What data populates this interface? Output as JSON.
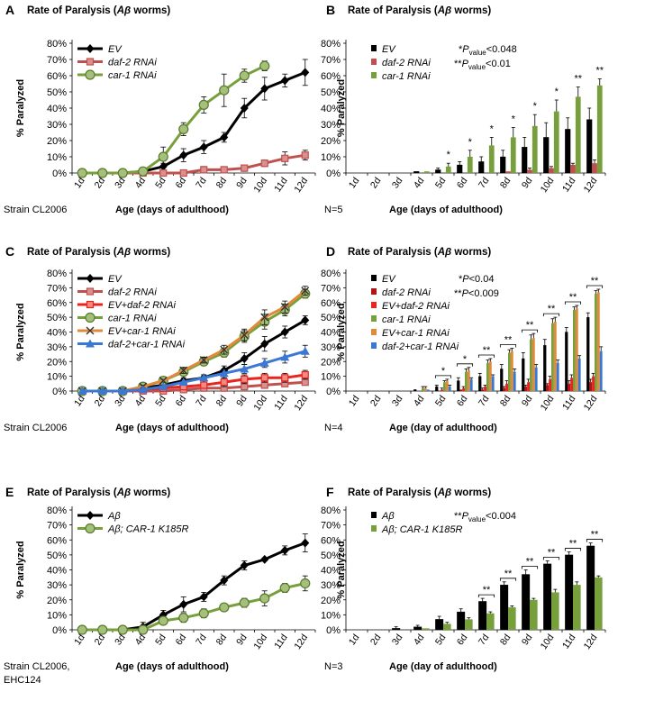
{
  "figure": {
    "days": [
      "1d",
      "2d",
      "3d",
      "4d",
      "5d",
      "6d",
      "7d",
      "8d",
      "9d",
      "10d",
      "11d",
      "12d"
    ],
    "yticks": [
      "0%",
      "10%",
      "20%",
      "30%",
      "40%",
      "50%",
      "60%",
      "70%",
      "80%"
    ]
  },
  "colors": {
    "black": "#000000",
    "daf2": "#c0504d",
    "car1": "#77a03c",
    "red": "#e8241c",
    "orange": "#e28a3c",
    "blue": "#3a78d4",
    "darkred": "#b01515"
  },
  "chart_data": [
    {
      "panel": "A",
      "type": "line",
      "title": "Rate of Paralysis (Aβ worms)",
      "xlabel": "Age (days of adulthood)",
      "ylabel": "% Paralyzed",
      "ylim": [
        0,
        80
      ],
      "note": "Strain CL2006",
      "legend_position": "top-left",
      "series": [
        {
          "name": "EV",
          "marker": "diamond",
          "color": "black",
          "values": [
            0,
            0,
            0,
            1,
            4,
            11,
            16,
            22,
            40,
            52,
            57,
            62
          ],
          "errors": [
            0,
            0,
            0,
            1,
            2,
            4,
            4,
            3,
            6,
            7,
            4,
            8
          ]
        },
        {
          "name": "daf-2 RNAi",
          "marker": "square",
          "color": "daf2",
          "values": [
            0,
            0,
            0,
            0,
            0,
            0,
            2,
            2,
            3,
            6,
            9,
            11
          ],
          "errors": [
            0,
            0,
            0,
            0,
            0,
            1,
            2,
            1,
            2,
            2,
            4,
            3
          ]
        },
        {
          "name": "car-1 RNAi",
          "marker": "circle",
          "color": "car1",
          "values": [
            0,
            0,
            0,
            1,
            10,
            27,
            42,
            51,
            60,
            66,
            null,
            null
          ],
          "errors": [
            0,
            0,
            0,
            1,
            6,
            4,
            5,
            10,
            4,
            3,
            0,
            0
          ]
        }
      ]
    },
    {
      "panel": "B",
      "type": "bar",
      "title": "Rate of Paralysis (Aβ worms)",
      "xlabel": "Age (days of adulthood)",
      "ylabel": "% Paralyzed",
      "ylim": [
        0,
        80
      ],
      "note": "N=5",
      "legend_position": "top-left",
      "annotations": [
        {
          "prefix": "*P",
          "sub": "value",
          "text": "<0.048"
        },
        {
          "prefix": "**P",
          "sub": "value",
          "text": "<0.01"
        }
      ],
      "series": [
        {
          "name": "EV",
          "color": "black",
          "values": [
            0,
            0,
            0,
            1,
            2,
            5,
            7,
            10,
            16,
            22,
            27,
            33
          ],
          "errors": [
            0,
            0,
            0,
            0,
            1,
            2,
            3,
            4,
            6,
            9,
            7,
            7
          ]
        },
        {
          "name": "daf-2 RNAi",
          "color": "daf2",
          "values": [
            0,
            0,
            0,
            0,
            0,
            0,
            0,
            1,
            2,
            3,
            5,
            6
          ],
          "errors": [
            0,
            0,
            0,
            0,
            0,
            0,
            0,
            0,
            1,
            1,
            1,
            2
          ]
        },
        {
          "name": "car-1 RNAi",
          "color": "car1",
          "values": [
            0,
            0,
            0,
            1,
            4,
            10,
            17,
            22,
            29,
            38,
            47,
            54
          ],
          "errors": [
            0,
            0,
            0,
            0,
            2,
            4,
            5,
            6,
            7,
            7,
            6,
            4
          ]
        }
      ],
      "significance": [
        "",
        "",
        "",
        "",
        "*",
        "*",
        "*",
        "*",
        "*",
        "*",
        "**",
        "**"
      ]
    },
    {
      "panel": "C",
      "type": "line",
      "title": "Rate of Paralysis (Aβ worms)",
      "xlabel": "Age (days of adulthood)",
      "ylabel": "% Paralyzed",
      "ylim": [
        0,
        80
      ],
      "note": "Strain CL2006",
      "legend_position": "top-left",
      "series": [
        {
          "name": "EV",
          "marker": "diamond",
          "color": "black",
          "values": [
            0,
            0,
            0,
            2,
            4,
            7,
            9,
            14,
            22,
            32,
            40,
            48
          ],
          "errors": [
            0,
            0,
            0,
            1,
            1,
            2,
            2,
            3,
            4,
            5,
            4,
            3
          ]
        },
        {
          "name": "daf-2 RNAi",
          "marker": "square",
          "color": "daf2",
          "values": [
            0,
            0,
            0,
            0,
            0,
            1,
            2,
            2,
            3,
            4,
            5,
            6
          ],
          "errors": [
            0,
            0,
            0,
            0,
            0,
            1,
            1,
            1,
            2,
            2,
            2,
            2
          ]
        },
        {
          "name": "EV+daf-2 RNAi",
          "marker": "square",
          "color": "red",
          "values": [
            0,
            0,
            0,
            1,
            2,
            3,
            4,
            6,
            8,
            9,
            9,
            11
          ],
          "errors": [
            0,
            0,
            0,
            1,
            1,
            2,
            2,
            3,
            3,
            3,
            3,
            3
          ]
        },
        {
          "name": "car-1 RNAi",
          "marker": "circle",
          "color": "car1",
          "values": [
            0,
            0,
            0,
            3,
            7,
            13,
            20,
            26,
            37,
            47,
            55,
            66
          ],
          "errors": [
            0,
            0,
            0,
            1,
            1,
            2,
            2,
            3,
            4,
            5,
            4,
            3
          ]
        },
        {
          "name": "EV+car-1 RNAi",
          "marker": "x",
          "color": "orange",
          "values": [
            0,
            0,
            0,
            3,
            7,
            14,
            21,
            28,
            38,
            50,
            57,
            68
          ],
          "errors": [
            0,
            0,
            0,
            1,
            1,
            2,
            2,
            3,
            4,
            5,
            4,
            3
          ]
        },
        {
          "name": "daf-2+car-1 RNAi",
          "marker": "triangle",
          "color": "blue",
          "values": [
            0,
            0,
            0,
            1,
            3,
            6,
            9,
            12,
            15,
            19,
            23,
            27
          ],
          "errors": [
            0,
            0,
            0,
            1,
            1,
            2,
            2,
            3,
            3,
            3,
            4,
            4
          ]
        }
      ]
    },
    {
      "panel": "D",
      "type": "bar",
      "title": "Rate of Paralysis (Aβ worms)",
      "xlabel": "Age (day of adulthood)",
      "ylabel": "% Paralyzed",
      "ylim": [
        0,
        80
      ],
      "note": "N=4",
      "legend_position": "top-left",
      "annotations": [
        {
          "prefix": "*P",
          "sub": "",
          "text": "<0.04"
        },
        {
          "prefix": "**P",
          "sub": "",
          "text": "<0.009"
        }
      ],
      "series": [
        {
          "name": "EV",
          "color": "black",
          "values": [
            0,
            0,
            0,
            1,
            3,
            7,
            10,
            15,
            22,
            31,
            40,
            50
          ],
          "errors": [
            0,
            0,
            0,
            0,
            1,
            2,
            2,
            3,
            4,
            4,
            3,
            3
          ]
        },
        {
          "name": "daf-2 RNAi",
          "color": "darkred",
          "values": [
            0,
            0,
            0,
            0,
            0,
            1,
            1,
            2,
            3,
            4,
            5,
            6
          ],
          "errors": [
            0,
            0,
            0,
            0,
            0,
            0,
            1,
            1,
            1,
            1,
            2,
            2
          ]
        },
        {
          "name": "EV+daf-2 RNAi",
          "color": "red",
          "values": [
            0,
            0,
            0,
            0,
            1,
            2,
            3,
            5,
            6,
            8,
            9,
            10
          ],
          "errors": [
            0,
            0,
            0,
            0,
            1,
            1,
            1,
            2,
            2,
            2,
            2,
            2
          ]
        },
        {
          "name": "car-1 RNAi",
          "color": "car1",
          "values": [
            0,
            0,
            0,
            2,
            6,
            13,
            19,
            26,
            35,
            46,
            55,
            66
          ],
          "errors": [
            0,
            0,
            0,
            1,
            1,
            2,
            2,
            2,
            3,
            3,
            2,
            2
          ]
        },
        {
          "name": "EV+car-1 RNAi",
          "color": "orange",
          "values": [
            0,
            0,
            0,
            2,
            7,
            14,
            20,
            27,
            36,
            47,
            56,
            67
          ],
          "errors": [
            0,
            0,
            0,
            1,
            1,
            2,
            2,
            2,
            3,
            3,
            2,
            2
          ]
        },
        {
          "name": "daf-2+car-1 RNAi",
          "color": "blue",
          "values": [
            0,
            0,
            0,
            1,
            3,
            8,
            10,
            13,
            16,
            19,
            22,
            27
          ],
          "errors": [
            0,
            0,
            0,
            0,
            1,
            1,
            1,
            2,
            2,
            2,
            2,
            3
          ]
        }
      ],
      "significance": [
        "",
        "",
        "",
        "",
        "*",
        "*",
        "**",
        "**",
        "**",
        "**",
        "**",
        "**"
      ]
    },
    {
      "panel": "E",
      "type": "line",
      "title": "Rate of Paralysis (Aβ worms)",
      "xlabel": "Age (days of adulthood)",
      "ylabel": "% Paralyzed",
      "ylim": [
        0,
        80
      ],
      "note": [
        "Strain CL2006,",
        "EHC124"
      ],
      "legend_position": "top-left",
      "series": [
        {
          "name": "Aβ",
          "marker": "diamond",
          "color": "black",
          "values": [
            0,
            0,
            0,
            2,
            10,
            17,
            22,
            33,
            43,
            47,
            53,
            58
          ],
          "errors": [
            0,
            0,
            0,
            3,
            3,
            5,
            3,
            3,
            3,
            1,
            3,
            6
          ]
        },
        {
          "name": "Aβ; CAR-1 K185R",
          "marker": "circle",
          "color": "car1",
          "values": [
            0,
            0,
            0,
            0,
            6,
            8,
            11,
            15,
            18,
            21,
            28,
            31
          ],
          "errors": [
            0,
            0,
            0,
            1,
            2,
            3,
            3,
            1,
            3,
            5,
            3,
            5
          ]
        }
      ]
    },
    {
      "panel": "F",
      "type": "bar",
      "title": "Rate of Paralysis (Aβ worms)",
      "xlabel": "Age (day of adulthood)",
      "ylabel": "% Paralyzed",
      "ylim": [
        0,
        80
      ],
      "note": "N=3",
      "legend_position": "top-left",
      "annotations": [
        {
          "prefix": "**P",
          "sub": "value",
          "text": "<0.004"
        }
      ],
      "series": [
        {
          "name": "Aβ",
          "color": "black",
          "values": [
            0,
            0,
            1,
            2,
            7,
            12,
            19,
            30,
            37,
            44,
            50,
            56
          ],
          "errors": [
            0,
            0,
            1,
            1,
            2,
            2,
            2,
            2,
            3,
            2,
            2,
            2
          ]
        },
        {
          "name": "Aβ; CAR-1 K185R",
          "color": "car1",
          "values": [
            0,
            0,
            0,
            1,
            4,
            7,
            11,
            15,
            20,
            25,
            30,
            35
          ],
          "errors": [
            0,
            0,
            0,
            0,
            1,
            1,
            1,
            1,
            1,
            2,
            2,
            1
          ]
        }
      ],
      "significance": [
        "",
        "",
        "",
        "",
        "",
        "",
        "**",
        "**",
        "**",
        "**",
        "**",
        "**"
      ]
    }
  ]
}
